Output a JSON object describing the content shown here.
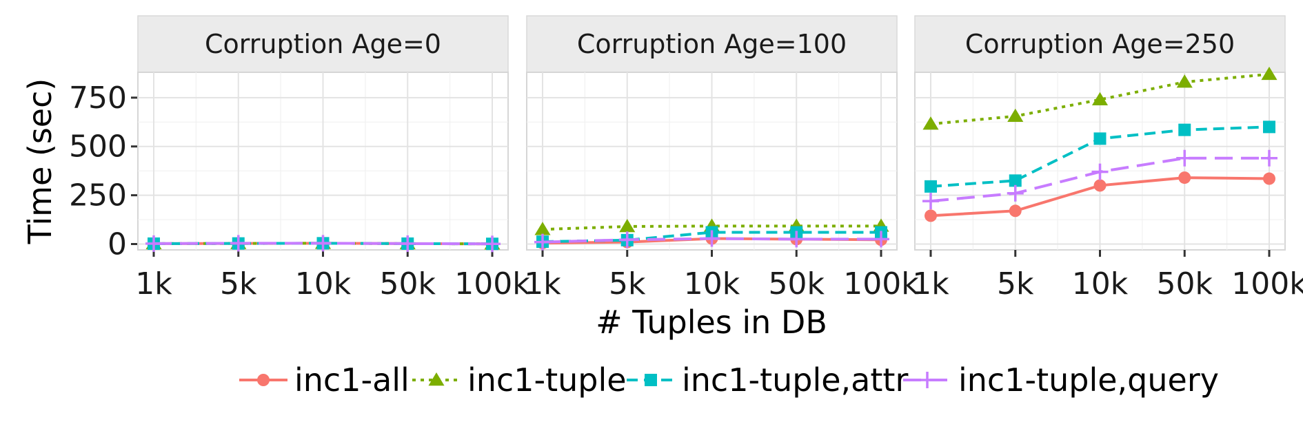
{
  "chart_data": {
    "type": "line",
    "xlabel": "# Tuples in DB",
    "ylabel": "Time (sec)",
    "categories": [
      "1k",
      "5k",
      "10k",
      "50k",
      "100k"
    ],
    "yticks": [
      0,
      250,
      500,
      750
    ],
    "ylim": [
      -30,
      880
    ],
    "grid": true,
    "legend_position": "bottom",
    "series_styles": [
      {
        "name": "inc1-all",
        "color": "#F8766D",
        "dash": "solid",
        "marker": "circle"
      },
      {
        "name": "inc1-tuple",
        "color": "#7CAE00",
        "dash": "dotted",
        "marker": "triangle"
      },
      {
        "name": "inc1-tuple,attr",
        "color": "#00BFC4",
        "dash": "dashed",
        "marker": "square"
      },
      {
        "name": "inc1-tuple,query",
        "color": "#C77CFF",
        "dash": "longdash",
        "marker": "plus"
      }
    ],
    "panels": [
      {
        "title": "Corruption Age=0",
        "series": [
          {
            "name": "inc1-all",
            "values": [
              2,
              3,
              4,
              2,
              1
            ]
          },
          {
            "name": "inc1-tuple",
            "values": [
              2,
              3,
              4,
              2,
              1
            ]
          },
          {
            "name": "inc1-tuple,attr",
            "values": [
              2,
              3,
              4,
              2,
              1
            ]
          },
          {
            "name": "inc1-tuple,query",
            "values": [
              2,
              4,
              4,
              2,
              1
            ]
          }
        ]
      },
      {
        "title": "Corruption Age=100",
        "series": [
          {
            "name": "inc1-all",
            "values": [
              5,
              10,
              28,
              25,
              22
            ]
          },
          {
            "name": "inc1-tuple",
            "values": [
              75,
              90,
              92,
              92,
              92
            ]
          },
          {
            "name": "inc1-tuple,attr",
            "values": [
              12,
              20,
              60,
              60,
              60
            ]
          },
          {
            "name": "inc1-tuple,query",
            "values": [
              10,
              22,
              28,
              25,
              25
            ]
          }
        ]
      },
      {
        "title": "Corruption Age=250",
        "series": [
          {
            "name": "inc1-all",
            "values": [
              145,
              170,
              300,
              340,
              335
            ]
          },
          {
            "name": "inc1-tuple",
            "values": [
              615,
              655,
              740,
              830,
              870
            ]
          },
          {
            "name": "inc1-tuple,attr",
            "values": [
              295,
              325,
              540,
              585,
              600
            ]
          },
          {
            "name": "inc1-tuple,query",
            "values": [
              220,
              260,
              370,
              440,
              440
            ]
          }
        ]
      }
    ]
  }
}
